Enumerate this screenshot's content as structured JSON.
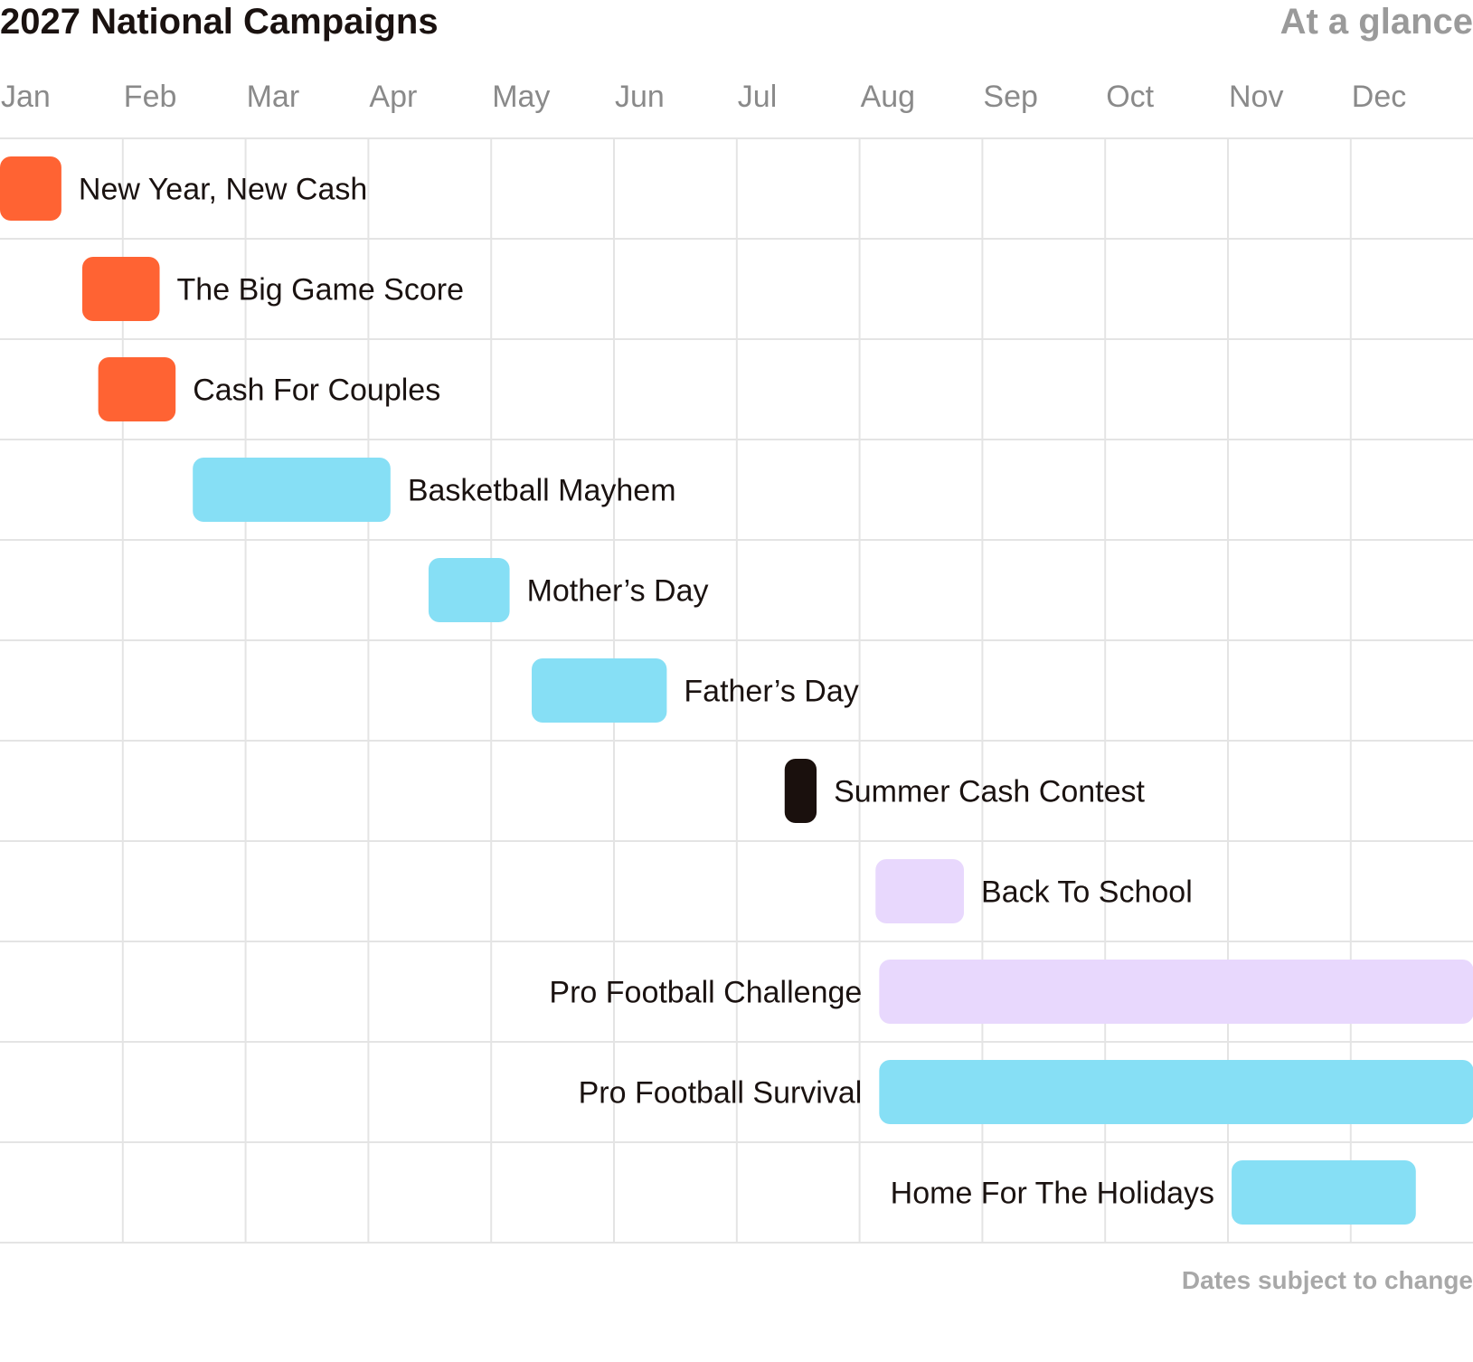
{
  "header": {
    "title": "2027 National Campaigns",
    "subtitle": "At a glance"
  },
  "footer": {
    "note": "Dates subject to change"
  },
  "colors": {
    "orange": "#ff6333",
    "cyan": "#86dff5",
    "lavender": "#e8d8fd",
    "black": "#1a100d",
    "grid": "#e4e4e4",
    "month_text": "#8a8a8a"
  },
  "chart_data": {
    "type": "gantt",
    "title": "2027 National Campaigns",
    "subtitle": "At a glance",
    "x_unit": "month",
    "x_ticks": [
      "Jan",
      "Feb",
      "Mar",
      "Apr",
      "May",
      "Jun",
      "Jul",
      "Aug",
      "Sep",
      "Oct",
      "Nov",
      "Dec"
    ],
    "x_range": [
      0,
      12
    ],
    "grid": true,
    "tasks": [
      {
        "name": "New Year, New Cash",
        "start": 0.0,
        "end": 0.5,
        "color": "orange",
        "label_side": "right"
      },
      {
        "name": "The Big Game Score",
        "start": 0.67,
        "end": 1.3,
        "color": "orange",
        "label_side": "right"
      },
      {
        "name": "Cash For Couples",
        "start": 0.8,
        "end": 1.43,
        "color": "orange",
        "label_side": "right"
      },
      {
        "name": "Basketball Mayhem",
        "start": 1.57,
        "end": 3.18,
        "color": "cyan",
        "label_side": "right"
      },
      {
        "name": "Mother’s Day",
        "start": 3.49,
        "end": 4.15,
        "color": "cyan",
        "label_side": "right"
      },
      {
        "name": "Father’s Day",
        "start": 4.33,
        "end": 5.43,
        "color": "cyan",
        "label_side": "right"
      },
      {
        "name": "Summer Cash Contest",
        "start": 6.39,
        "end": 6.65,
        "color": "black",
        "label_side": "right"
      },
      {
        "name": "Back To School",
        "start": 7.13,
        "end": 7.85,
        "color": "lavender",
        "label_side": "right"
      },
      {
        "name": "Pro Football Challenge",
        "start": 7.16,
        "end": 12.0,
        "color": "lavender",
        "label_side": "left"
      },
      {
        "name": "Pro Football Survival",
        "start": 7.16,
        "end": 12.0,
        "color": "cyan",
        "label_side": "left"
      },
      {
        "name": "Home For The Holidays",
        "start": 10.03,
        "end": 11.53,
        "color": "cyan",
        "label_side": "left"
      }
    ],
    "footnote": "Dates subject to change"
  }
}
